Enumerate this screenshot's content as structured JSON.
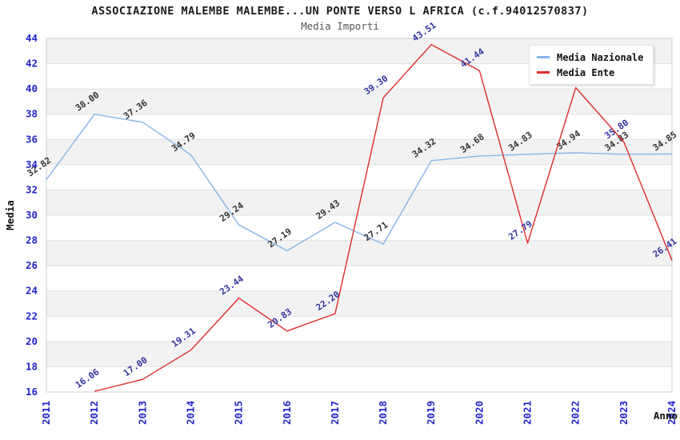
{
  "title": "ASSOCIAZIONE MALEMBE MALEMBE...UN PONTE VERSO L AFRICA (c.f.94012570837)",
  "subtitle": "Media Importi",
  "legend": {
    "items": [
      {
        "label": "Media Nazionale",
        "color": "#85b5e8"
      },
      {
        "label": "Media Ente",
        "color": "#e02b2b"
      }
    ]
  },
  "axes": {
    "y_title": "Media",
    "x_title": "Anno",
    "y_tick_labels": [
      "16",
      "18",
      "20",
      "22",
      "24",
      "26",
      "28",
      "30",
      "32",
      "34",
      "36",
      "38",
      "40",
      "42",
      "44"
    ],
    "x_tick_labels": [
      "2011",
      "2012",
      "2013",
      "2014",
      "2015",
      "2016",
      "2017",
      "2018",
      "2019",
      "2020",
      "2021",
      "2022",
      "2023",
      "2024"
    ]
  },
  "colors": {
    "tick_label": "#2424cc",
    "band_fill": "#f2f2f2",
    "grid_line": "#e2e2e2",
    "plot_border": "#cccccc",
    "nazionale_line": "#85b5e8",
    "ente_line": "#e02b2b",
    "nazionale_value_label": "#333333",
    "ente_value_label": "#3333a0"
  },
  "chart_data": {
    "type": "line",
    "title": "ASSOCIAZIONE MALEMBE MALEMBE...UN PONTE VERSO L AFRICA (c.f.94012570837)",
    "subtitle": "Media Importi",
    "xlabel": "Anno",
    "ylabel": "Media",
    "x": [
      2011,
      2012,
      2013,
      2014,
      2015,
      2016,
      2017,
      2018,
      2019,
      2020,
      2021,
      2022,
      2023,
      2024
    ],
    "ylim": [
      16,
      44
    ],
    "ytick_step": 2,
    "grid": "banded-horizontal",
    "legend_position": "top-right",
    "series": [
      {
        "name": "Media Nazionale",
        "color": "#85b5e8",
        "label_color": "#333333",
        "values": [
          32.82,
          38.0,
          37.36,
          34.79,
          29.24,
          27.19,
          29.43,
          27.71,
          34.32,
          34.68,
          34.83,
          34.94,
          34.83,
          34.85
        ],
        "labels": [
          "32.82",
          "38.00",
          "37.36",
          "34.79",
          "29.24",
          "27.19",
          "29.43",
          "27.71",
          "34.32",
          "34.68",
          "34.83",
          "34.94",
          "34.83",
          "34.85"
        ]
      },
      {
        "name": "Media Ente",
        "color": "#e02b2b",
        "label_color": "#3333a0",
        "values": [
          null,
          16.06,
          17.0,
          19.31,
          23.44,
          20.83,
          22.2,
          39.3,
          43.51,
          41.44,
          27.79,
          40.1,
          35.8,
          26.41
        ],
        "labels": [
          "",
          "16.06",
          "17.00",
          "19.31",
          "23.44",
          "20.83",
          "22.20",
          "39.30",
          "43.51",
          "41.44",
          "27.79",
          "",
          "35.80",
          "26.41"
        ]
      }
    ]
  }
}
